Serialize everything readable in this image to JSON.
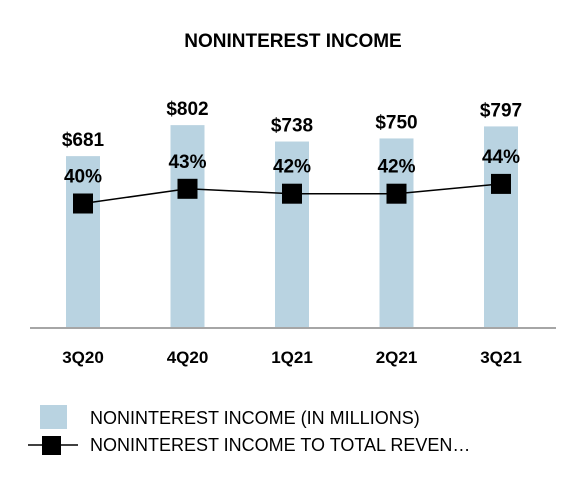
{
  "chart_data": {
    "type": "bar",
    "title": "NONINTEREST INCOME",
    "categories": [
      "3Q20",
      "4Q20",
      "1Q21",
      "2Q21",
      "3Q21"
    ],
    "series": [
      {
        "name": "NONINTEREST INCOME (IN MILLIONS)",
        "type": "bar",
        "values": [
          681,
          802,
          738,
          750,
          797
        ],
        "labels": [
          "$681",
          "$802",
          "$738",
          "$750",
          "$797"
        ],
        "color": "#b9d3e1"
      },
      {
        "name": "NONINTEREST INCOME TO TOTAL REVEN…",
        "type": "line",
        "values": [
          40,
          43,
          42,
          42,
          44
        ],
        "labels": [
          "40%",
          "43%",
          "42%",
          "42%",
          "44%"
        ],
        "color": "#000000"
      }
    ],
    "legend_position": "bottom",
    "grid": false
  }
}
